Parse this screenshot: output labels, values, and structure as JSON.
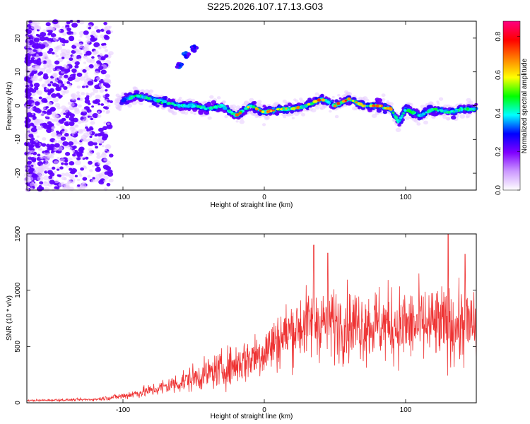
{
  "title": "S225.2026.107.17.13.G03",
  "chart_data": [
    {
      "type": "heatmap",
      "name": "spectrogram",
      "xlabel": "Height of straight line (km)",
      "ylabel": "Frequency (Hz)",
      "xlim": [
        -168,
        150
      ],
      "ylim": [
        -25,
        25
      ],
      "x_ticks": [
        -100,
        0,
        100
      ],
      "x_tick_labels": [
        "-100",
        "0",
        "100"
      ],
      "y_ticks": [
        -20,
        -10,
        0,
        10,
        20
      ],
      "y_tick_labels": [
        "-20",
        "-10",
        "0",
        "10",
        "20"
      ],
      "colorbar": {
        "label": "Normalized spectral amplitude",
        "range": [
          0,
          0.88
        ],
        "ticks": [
          0,
          0.2,
          0.4,
          0.6,
          0.8
        ],
        "tick_labels": [
          "0.0",
          "0.2",
          "0.4",
          "0.6",
          "0.8"
        ],
        "colormap": [
          "#ffffff",
          "#cc99ff",
          "#8000ff",
          "#0000ff",
          "#00ffff",
          "#00ff00",
          "#ffff00",
          "#ff8000",
          "#ff0000",
          "#ff0080"
        ]
      },
      "trace_center_hz": [
        [
          -100,
          1.5
        ],
        [
          -90,
          3
        ],
        [
          -80,
          2
        ],
        [
          -70,
          1
        ],
        [
          -60,
          0
        ],
        [
          -50,
          0
        ],
        [
          -40,
          -1
        ],
        [
          -30,
          0
        ],
        [
          -20,
          -3
        ],
        [
          -10,
          0
        ],
        [
          0,
          -2
        ],
        [
          10,
          -1
        ],
        [
          20,
          -1
        ],
        [
          30,
          0
        ],
        [
          40,
          2
        ],
        [
          50,
          0
        ],
        [
          60,
          2
        ],
        [
          70,
          0
        ],
        [
          80,
          0
        ],
        [
          90,
          -1
        ],
        [
          95,
          -5
        ],
        [
          100,
          -1
        ],
        [
          110,
          -3
        ],
        [
          120,
          -1
        ],
        [
          130,
          -2
        ],
        [
          140,
          -1
        ],
        [
          150,
          -1
        ]
      ],
      "side_feature": [
        [
          -60,
          12
        ],
        [
          -55,
          15
        ],
        [
          -50,
          17
        ]
      ]
    },
    {
      "type": "line",
      "name": "snr",
      "xlabel": "Height of straight line (km)",
      "ylabel": "SNR (10 * v/v)",
      "xlim": [
        -168,
        150
      ],
      "ylim": [
        0,
        1500
      ],
      "x_ticks": [
        -100,
        0,
        100
      ],
      "x_tick_labels": [
        "-100",
        "0",
        "100"
      ],
      "y_ticks": [
        0,
        500,
        1000,
        1500
      ],
      "y_tick_labels": [
        "0",
        "500",
        "1000",
        "1500"
      ],
      "color": "#ee3333",
      "envelope": [
        [
          -168,
          20
        ],
        [
          -120,
          30
        ],
        [
          -100,
          60
        ],
        [
          -80,
          110
        ],
        [
          -60,
          180
        ],
        [
          -40,
          260
        ],
        [
          -20,
          340
        ],
        [
          0,
          460
        ],
        [
          10,
          560
        ],
        [
          20,
          650
        ],
        [
          30,
          700
        ],
        [
          40,
          720
        ],
        [
          60,
          700
        ],
        [
          80,
          700
        ],
        [
          100,
          680
        ],
        [
          120,
          690
        ],
        [
          140,
          680
        ],
        [
          150,
          680
        ]
      ],
      "spread": [
        [
          -168,
          10
        ],
        [
          -120,
          15
        ],
        [
          -100,
          40
        ],
        [
          -80,
          70
        ],
        [
          -60,
          120
        ],
        [
          -40,
          170
        ],
        [
          -20,
          230
        ],
        [
          0,
          290
        ],
        [
          20,
          360
        ],
        [
          40,
          400
        ],
        [
          60,
          400
        ],
        [
          100,
          420
        ],
        [
          150,
          420
        ]
      ],
      "peaks": [
        [
          35,
          1400
        ],
        [
          45,
          1330
        ],
        [
          130,
          1520
        ],
        [
          142,
          1320
        ]
      ]
    }
  ]
}
